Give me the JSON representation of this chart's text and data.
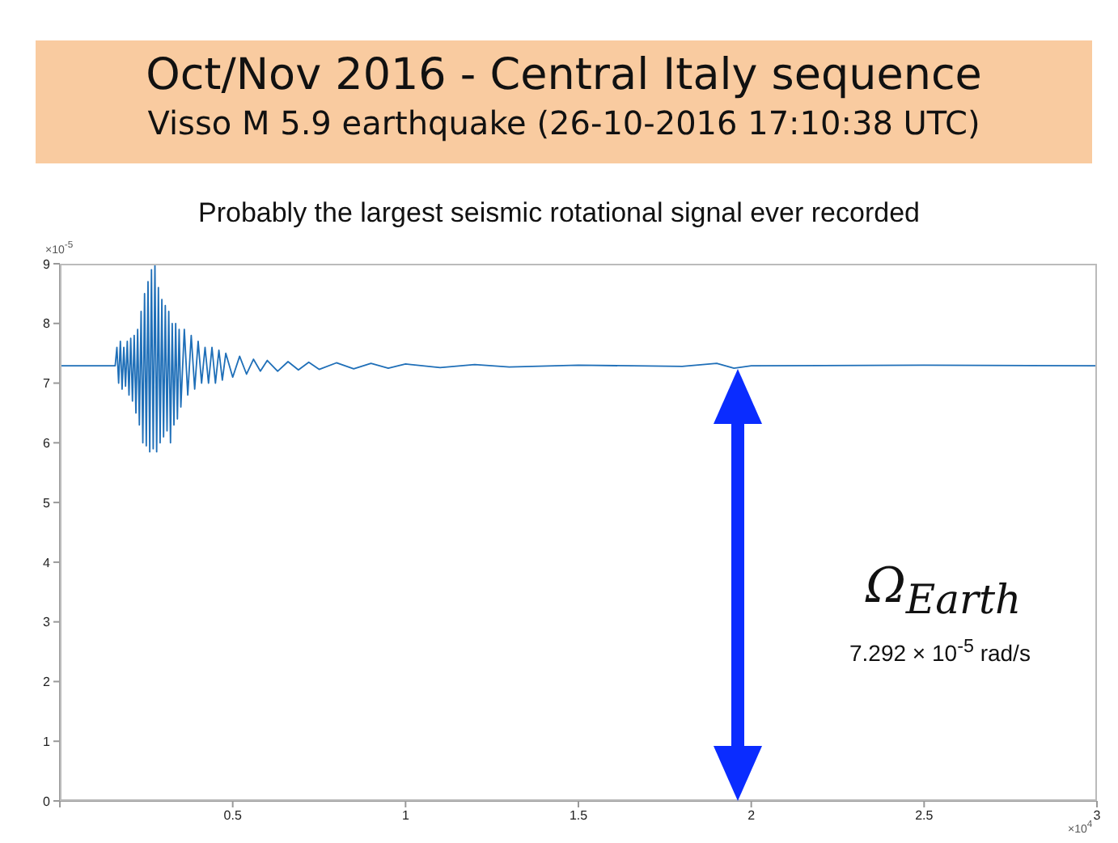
{
  "chart_data": {
    "type": "line",
    "title": "Oct/Nov 2016  -  Central Italy sequence",
    "subtitle": "Visso M 5.9 earthquake   (26-10-2016   17:10:38 UTC)",
    "annotations": [
      "Probably the largest seismic rotational signal ever recorded",
      "×10$^{-5}$",
      "×10$^{4}$",
      "Ω$_{Earth}$",
      "7.292 × 10$^{-5}$ rad/s"
    ],
    "xlim": [
      0,
      3
    ],
    "xticks": [
      {
        "value": 0,
        "label": null
      },
      0.5,
      1,
      1.5,
      2,
      2.5,
      3
    ],
    "ylim": [
      0,
      9
    ],
    "yticks": [
      0,
      1,
      2,
      3,
      4,
      5,
      6,
      7,
      8,
      9
    ],
    "grid": false,
    "marker": "none",
    "line_style": "solid",
    "series": [
      {
        "color": "#1f6fb8",
        "x": [
          0,
          0.16,
          0.165,
          0.17,
          0.175,
          0.18,
          0.185,
          0.19,
          0.195,
          0.2,
          0.205,
          0.21,
          0.215,
          0.22,
          0.225,
          0.23,
          0.235,
          0.24,
          0.245,
          0.25,
          0.255,
          0.26,
          0.265,
          0.27,
          0.275,
          0.28,
          0.285,
          0.29,
          0.295,
          0.3,
          0.305,
          0.31,
          0.315,
          0.32,
          0.325,
          0.33,
          0.335,
          0.34,
          0.345,
          0.35,
          0.36,
          0.37,
          0.38,
          0.39,
          0.4,
          0.41,
          0.42,
          0.43,
          0.44,
          0.45,
          0.46,
          0.47,
          0.48,
          0.5,
          0.52,
          0.54,
          0.56,
          0.58,
          0.6,
          0.63,
          0.66,
          0.69,
          0.72,
          0.75,
          0.8,
          0.85,
          0.9,
          0.95,
          1.0,
          1.1,
          1.2,
          1.3,
          1.5,
          1.8,
          1.9,
          1.95,
          2.0,
          2.5,
          3.0
        ],
        "values": [
          7.29,
          7.29,
          7.6,
          7.0,
          7.7,
          6.9,
          7.6,
          6.95,
          7.7,
          6.8,
          7.75,
          6.7,
          7.8,
          6.5,
          7.9,
          6.3,
          8.2,
          6.0,
          8.5,
          5.95,
          8.7,
          5.85,
          8.9,
          5.9,
          9.0,
          5.85,
          8.6,
          6.0,
          8.4,
          6.1,
          8.3,
          6.2,
          8.2,
          6.0,
          8.0,
          6.3,
          8.0,
          6.4,
          7.9,
          6.6,
          7.9,
          6.8,
          7.8,
          6.9,
          7.7,
          7.0,
          7.6,
          7.0,
          7.6,
          7.0,
          7.55,
          7.05,
          7.5,
          7.1,
          7.45,
          7.15,
          7.4,
          7.2,
          7.38,
          7.2,
          7.36,
          7.22,
          7.35,
          7.23,
          7.34,
          7.24,
          7.33,
          7.25,
          7.32,
          7.26,
          7.31,
          7.27,
          7.3,
          7.28,
          7.33,
          7.25,
          7.29,
          7.3,
          7.29
        ]
      }
    ]
  }
}
